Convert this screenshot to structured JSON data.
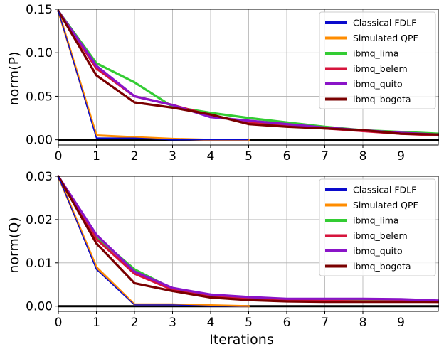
{
  "chart_data": [
    {
      "type": "line",
      "ylabel": "norm(P)",
      "xlabel": "",
      "xlim": [
        0,
        10
      ],
      "ylim": [
        -0.006,
        0.15
      ],
      "x_ticks": [
        0,
        1,
        2,
        3,
        4,
        5,
        6,
        7,
        8,
        9
      ],
      "y_ticks": [
        0.0,
        0.05,
        0.1,
        0.15
      ],
      "y_tick_labels": [
        "0.00",
        "0.05",
        "0.10",
        "0.15"
      ],
      "grid": true,
      "legend_position": "top-right",
      "reference_line": 0,
      "series": [
        {
          "name": "Classical FDLF",
          "color": "#0a0acc",
          "x": [
            0,
            1,
            2,
            3,
            4,
            5
          ],
          "y": [
            0.148,
            0.002,
            0.002,
            0.0,
            0.0,
            0.0
          ]
        },
        {
          "name": "Simulated QPF",
          "color": "#ff8c00",
          "x": [
            0,
            1,
            2,
            3,
            4,
            5
          ],
          "y": [
            0.148,
            0.005,
            0.003,
            0.001,
            0.0,
            0.0
          ]
        },
        {
          "name": "ibmq_lima",
          "color": "#33cc33",
          "x": [
            0,
            1,
            2,
            3,
            4,
            5,
            6,
            7,
            8,
            9,
            10
          ],
          "y": [
            0.148,
            0.088,
            0.066,
            0.038,
            0.031,
            0.025,
            0.02,
            0.015,
            0.011,
            0.009,
            0.007
          ]
        },
        {
          "name": "ibmq_belem",
          "color": "#d6143c",
          "x": [
            0,
            1,
            2,
            3,
            4,
            5,
            6,
            7,
            8,
            9,
            10
          ],
          "y": [
            0.148,
            0.082,
            0.05,
            0.04,
            0.028,
            0.02,
            0.016,
            0.013,
            0.01,
            0.007,
            0.005
          ]
        },
        {
          "name": "ibmq_quito",
          "color": "#8a14c8",
          "x": [
            0,
            1,
            2,
            3,
            4,
            5,
            6,
            7,
            8,
            9,
            10
          ],
          "y": [
            0.148,
            0.085,
            0.05,
            0.04,
            0.026,
            0.022,
            0.018,
            0.014,
            0.011,
            0.008,
            0.006
          ]
        },
        {
          "name": "ibmq_bogota",
          "color": "#7a0000",
          "x": [
            0,
            1,
            2,
            3,
            4,
            5,
            6,
            7,
            8,
            9,
            10
          ],
          "y": [
            0.148,
            0.074,
            0.043,
            0.037,
            0.029,
            0.018,
            0.015,
            0.013,
            0.011,
            0.007,
            0.006
          ]
        }
      ]
    },
    {
      "type": "line",
      "ylabel": "norm(Q)",
      "xlabel": "Iterations",
      "xlim": [
        0,
        10
      ],
      "ylim": [
        -0.0012,
        0.03
      ],
      "x_ticks": [
        0,
        1,
        2,
        3,
        4,
        5,
        6,
        7,
        8,
        9
      ],
      "y_ticks": [
        0.0,
        0.01,
        0.02,
        0.03
      ],
      "y_tick_labels": [
        "0.00",
        "0.01",
        "0.02",
        "0.03"
      ],
      "grid": true,
      "legend_position": "top-right",
      "reference_line": 0,
      "series": [
        {
          "name": "Classical FDLF",
          "color": "#0a0acc",
          "x": [
            0,
            1,
            2,
            3,
            4,
            5
          ],
          "y": [
            0.03,
            0.0085,
            0.0003,
            0.0003,
            0.0,
            0.0
          ]
        },
        {
          "name": "Simulated QPF",
          "color": "#ff8c00",
          "x": [
            0,
            1,
            2,
            3,
            4,
            5
          ],
          "y": [
            0.03,
            0.009,
            0.0004,
            0.0004,
            0.0002,
            0.0
          ]
        },
        {
          "name": "ibmq_lima",
          "color": "#33cc33",
          "x": [
            0,
            1,
            2,
            3,
            4,
            5,
            6,
            7,
            8,
            9,
            10
          ],
          "y": [
            0.03,
            0.016,
            0.0085,
            0.004,
            0.0025,
            0.0018,
            0.0015,
            0.0014,
            0.0013,
            0.0012,
            0.0012
          ]
        },
        {
          "name": "ibmq_belem",
          "color": "#d6143c",
          "x": [
            0,
            1,
            2,
            3,
            4,
            5,
            6,
            7,
            8,
            9,
            10
          ],
          "y": [
            0.03,
            0.0155,
            0.0075,
            0.0038,
            0.0022,
            0.0016,
            0.0013,
            0.0012,
            0.0011,
            0.0011,
            0.001
          ]
        },
        {
          "name": "ibmq_quito",
          "color": "#8a14c8",
          "x": [
            0,
            1,
            2,
            3,
            4,
            5,
            6,
            7,
            8,
            9,
            10
          ],
          "y": [
            0.03,
            0.0165,
            0.008,
            0.0042,
            0.0027,
            0.0021,
            0.0017,
            0.0017,
            0.0017,
            0.0016,
            0.0013
          ]
        },
        {
          "name": "ibmq_bogota",
          "color": "#7a0000",
          "x": [
            0,
            1,
            2,
            3,
            4,
            5,
            6,
            7,
            8,
            9,
            10
          ],
          "y": [
            0.03,
            0.0145,
            0.0053,
            0.0035,
            0.002,
            0.0014,
            0.0011,
            0.001,
            0.001,
            0.001,
            0.001
          ]
        }
      ]
    }
  ]
}
